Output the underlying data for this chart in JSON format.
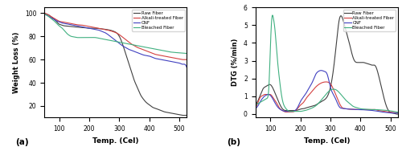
{
  "title_a": "(a)",
  "title_b": "(b)",
  "xlabel": "Temp. (Cel)",
  "ylabel_a": "Weight Loss (%)",
  "ylabel_b": "DTG (%/min)",
  "xlim": [
    50,
    525
  ],
  "ylim_a": [
    10,
    105
  ],
  "ylim_b": [
    -0.2,
    6.0
  ],
  "yticks_a": [
    20,
    40,
    60,
    80,
    100
  ],
  "yticks_b": [
    0,
    1,
    2,
    3,
    4,
    5,
    6
  ],
  "xticks": [
    100,
    200,
    300,
    400,
    500
  ],
  "colors": {
    "raw": "#404040",
    "alkali": "#d44040",
    "cnf": "#4040c0",
    "bleached": "#40b080"
  },
  "legend_labels": [
    "Raw Fiber",
    "Alkali-treated Fiber",
    "CNF",
    "Bleached Fiber"
  ],
  "tg": {
    "raw": {
      "x": [
        50,
        55,
        60,
        65,
        70,
        75,
        80,
        85,
        90,
        95,
        100,
        105,
        110,
        120,
        130,
        140,
        150,
        160,
        170,
        180,
        190,
        200,
        210,
        220,
        230,
        240,
        250,
        260,
        270,
        280,
        290,
        300,
        310,
        320,
        330,
        340,
        350,
        360,
        370,
        380,
        390,
        400,
        410,
        420,
        430,
        440,
        450,
        460,
        470,
        480,
        490,
        500,
        510,
        520,
        525
      ],
      "y": [
        100,
        99.5,
        99,
        98.5,
        97.5,
        96.5,
        95.5,
        94.5,
        93,
        91.5,
        90.5,
        90,
        89.5,
        89,
        88.8,
        88.5,
        88.2,
        88,
        87.8,
        87.5,
        87.3,
        87,
        87,
        87,
        86.8,
        86.5,
        86.2,
        85.8,
        85.3,
        84.5,
        83.2,
        80,
        74,
        66,
        58,
        50,
        42,
        36,
        30,
        26,
        23,
        21,
        19,
        18,
        17,
        16,
        15,
        14.5,
        14,
        13.5,
        13,
        12.5,
        12,
        12,
        12
      ]
    },
    "alkali": {
      "x": [
        50,
        60,
        70,
        80,
        90,
        100,
        110,
        120,
        130,
        140,
        150,
        160,
        170,
        180,
        190,
        200,
        210,
        220,
        230,
        240,
        250,
        260,
        270,
        280,
        290,
        300,
        310,
        320,
        330,
        340,
        350,
        360,
        370,
        380,
        390,
        400,
        410,
        420,
        430,
        440,
        450,
        460,
        470,
        480,
        490,
        500,
        510,
        520,
        525
      ],
      "y": [
        100,
        99,
        97.5,
        96,
        94.5,
        93,
        92.5,
        92,
        91.5,
        91,
        90.5,
        90,
        89.8,
        89.5,
        89,
        88.5,
        88,
        87.5,
        87,
        86.5,
        86,
        85.5,
        84.8,
        84,
        83,
        81.5,
        79.5,
        77.5,
        75.5,
        73.5,
        72,
        70.5,
        69.5,
        68.5,
        67.5,
        66.5,
        65.5,
        64.5,
        64,
        63.5,
        63,
        62.5,
        62,
        61.5,
        61,
        60.5,
        60,
        60,
        60
      ]
    },
    "cnf": {
      "x": [
        50,
        60,
        70,
        80,
        90,
        100,
        110,
        120,
        130,
        140,
        150,
        160,
        170,
        180,
        190,
        200,
        210,
        220,
        230,
        240,
        250,
        260,
        270,
        280,
        290,
        300,
        310,
        320,
        330,
        340,
        350,
        360,
        370,
        380,
        390,
        400,
        410,
        420,
        430,
        440,
        450,
        460,
        470,
        480,
        490,
        500,
        510,
        520,
        525
      ],
      "y": [
        99,
        98,
        96.5,
        95,
        93.5,
        92.5,
        91.5,
        91,
        90.5,
        90,
        89.5,
        89,
        88.5,
        88,
        87.5,
        87,
        86.5,
        86,
        85.5,
        84.5,
        83.5,
        82,
        80,
        78,
        76,
        74,
        72,
        70.5,
        69,
        68,
        67,
        66,
        65,
        64,
        63.5,
        63,
        62,
        61,
        60.5,
        60,
        59.5,
        59,
        58.5,
        58,
        57.5,
        57,
        56,
        55.5,
        53
      ]
    },
    "bleached": {
      "x": [
        50,
        60,
        70,
        80,
        90,
        100,
        110,
        120,
        130,
        140,
        150,
        160,
        170,
        180,
        190,
        200,
        210,
        220,
        230,
        240,
        250,
        260,
        270,
        280,
        290,
        300,
        310,
        320,
        330,
        340,
        350,
        360,
        370,
        380,
        390,
        400,
        410,
        420,
        430,
        440,
        450,
        460,
        470,
        480,
        490,
        500,
        510,
        520,
        525
      ],
      "y": [
        99,
        98,
        96,
        94,
        91.5,
        89,
        87,
        84,
        81.5,
        80,
        79.5,
        79,
        79,
        79,
        79,
        79,
        79,
        79,
        78.5,
        78,
        77.5,
        77,
        76.5,
        76,
        75.5,
        75,
        74.5,
        74,
        73.5,
        73,
        72.5,
        72,
        71.5,
        71,
        70.5,
        70,
        69.5,
        69,
        68.5,
        68,
        67.5,
        67,
        66.5,
        66.3,
        66,
        65.8,
        65.6,
        65.4,
        65.3
      ]
    }
  },
  "dtg": {
    "raw": {
      "x": [
        50,
        60,
        65,
        70,
        75,
        80,
        85,
        90,
        95,
        100,
        110,
        120,
        130,
        140,
        150,
        160,
        170,
        180,
        190,
        200,
        210,
        220,
        230,
        240,
        250,
        260,
        270,
        280,
        290,
        300,
        310,
        320,
        330,
        340,
        350,
        360,
        370,
        380,
        390,
        400,
        410,
        420,
        430,
        440,
        450,
        460,
        470,
        480,
        490,
        500,
        510,
        520,
        525
      ],
      "y": [
        0.5,
        0.8,
        1.0,
        1.2,
        1.4,
        1.5,
        1.55,
        1.6,
        1.65,
        1.65,
        1.4,
        1.0,
        0.6,
        0.3,
        0.2,
        0.2,
        0.2,
        0.2,
        0.22,
        0.28,
        0.3,
        0.35,
        0.4,
        0.45,
        0.5,
        0.6,
        0.7,
        0.8,
        1.0,
        1.5,
        2.5,
        4.0,
        5.35,
        5.4,
        4.8,
        4.2,
        3.5,
        3.0,
        2.9,
        2.9,
        2.9,
        2.85,
        2.8,
        2.75,
        2.7,
        2.2,
        1.5,
        0.8,
        0.3,
        0.1,
        0.05,
        0.0,
        0.0
      ]
    },
    "alkali": {
      "x": [
        50,
        60,
        65,
        70,
        75,
        80,
        85,
        90,
        95,
        100,
        110,
        120,
        130,
        140,
        150,
        160,
        170,
        180,
        190,
        200,
        210,
        220,
        230,
        240,
        250,
        260,
        270,
        280,
        290,
        300,
        310,
        320,
        330,
        340,
        350,
        360,
        370,
        380,
        390,
        400,
        410,
        420,
        430,
        440,
        450,
        460,
        470,
        480,
        490,
        500,
        510,
        520,
        525
      ],
      "y": [
        0.4,
        0.7,
        0.9,
        1.0,
        1.05,
        1.1,
        1.1,
        1.1,
        1.1,
        1.1,
        0.9,
        0.65,
        0.35,
        0.2,
        0.12,
        0.12,
        0.12,
        0.15,
        0.3,
        0.5,
        0.65,
        0.9,
        1.1,
        1.3,
        1.5,
        1.65,
        1.75,
        1.8,
        1.8,
        1.7,
        1.4,
        1.0,
        0.6,
        0.35,
        0.3,
        0.28,
        0.27,
        0.26,
        0.25,
        0.25,
        0.25,
        0.25,
        0.25,
        0.25,
        0.25,
        0.2,
        0.18,
        0.15,
        0.12,
        0.1,
        0.08,
        0.08,
        0.08
      ]
    },
    "cnf": {
      "x": [
        50,
        60,
        65,
        70,
        75,
        80,
        85,
        90,
        95,
        100,
        110,
        120,
        130,
        140,
        150,
        160,
        170,
        180,
        190,
        200,
        210,
        220,
        230,
        240,
        250,
        260,
        270,
        280,
        290,
        300,
        310,
        320,
        330,
        340,
        350,
        360,
        370,
        380,
        390,
        400,
        410,
        420,
        430,
        440,
        450,
        460,
        470,
        480,
        490,
        500,
        510,
        520,
        525
      ],
      "y": [
        0.3,
        0.5,
        0.65,
        0.8,
        0.9,
        1.0,
        1.05,
        1.1,
        1.1,
        1.05,
        0.8,
        0.5,
        0.3,
        0.2,
        0.15,
        0.15,
        0.15,
        0.18,
        0.35,
        0.7,
        0.95,
        1.2,
        1.5,
        1.8,
        2.2,
        2.4,
        2.45,
        2.4,
        2.2,
        1.5,
        1.1,
        0.75,
        0.4,
        0.32,
        0.3,
        0.28,
        0.27,
        0.26,
        0.25,
        0.25,
        0.24,
        0.23,
        0.22,
        0.2,
        0.18,
        0.15,
        0.12,
        0.1,
        0.08,
        0.06,
        0.05,
        0.05,
        0.05
      ]
    },
    "bleached": {
      "x": [
        50,
        55,
        60,
        65,
        70,
        75,
        80,
        85,
        90,
        95,
        100,
        105,
        110,
        115,
        120,
        125,
        130,
        140,
        150,
        160,
        170,
        180,
        190,
        200,
        210,
        220,
        230,
        240,
        250,
        260,
        270,
        280,
        290,
        300,
        310,
        320,
        330,
        340,
        350,
        360,
        370,
        380,
        390,
        400,
        410,
        420,
        430,
        440,
        450,
        460,
        470,
        480,
        490,
        500,
        510,
        520,
        525
      ],
      "y": [
        0.5,
        0.55,
        0.6,
        0.65,
        0.7,
        0.75,
        0.8,
        0.85,
        0.9,
        1.5,
        3.7,
        5.4,
        5.4,
        4.8,
        3.8,
        2.8,
        2.0,
        0.8,
        0.35,
        0.18,
        0.15,
        0.15,
        0.15,
        0.15,
        0.18,
        0.22,
        0.28,
        0.35,
        0.45,
        0.6,
        0.8,
        1.0,
        1.2,
        1.35,
        1.4,
        1.35,
        1.2,
        1.0,
        0.8,
        0.65,
        0.5,
        0.4,
        0.35,
        0.3,
        0.28,
        0.27,
        0.26,
        0.25,
        0.25,
        0.24,
        0.23,
        0.22,
        0.2,
        0.18,
        0.15,
        0.12,
        0.1
      ]
    }
  }
}
